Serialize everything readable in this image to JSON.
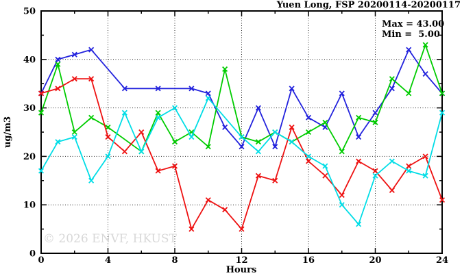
{
  "title": "Yuen Long, FSP 20200114-20200117",
  "watermark": "© 2026 ENVF, HKUST",
  "chart_data": {
    "type": "line",
    "title": "Yuen Long, FSP 20200114-20200117",
    "xlabel": "Hours",
    "ylabel": "ug/m3",
    "xlim": [
      0,
      24
    ],
    "ylim": [
      0,
      50
    ],
    "xticks": [
      0,
      4,
      8,
      12,
      16,
      20,
      24
    ],
    "yticks": [
      0,
      10,
      20,
      30,
      40,
      50
    ],
    "grid": true,
    "legend": "none",
    "annotations": {
      "max": "Max = 43.00",
      "min": "Min =  5.00"
    },
    "x": [
      0,
      1,
      2,
      3,
      4,
      5,
      6,
      7,
      8,
      9,
      10,
      11,
      12,
      13,
      14,
      15,
      16,
      17,
      18,
      19,
      20,
      21,
      22,
      23,
      24
    ],
    "series": [
      {
        "name": "blue",
        "color": "#2222dd",
        "values": [
          33,
          40,
          41,
          42,
          null,
          34,
          null,
          34,
          null,
          34,
          33,
          26,
          22,
          30,
          22,
          34,
          28,
          26,
          33,
          24,
          29,
          34,
          42,
          37,
          33
        ]
      },
      {
        "name": "green",
        "color": "#00cc00",
        "values": [
          29,
          39,
          25,
          28,
          26,
          null,
          21,
          29,
          23,
          25,
          22,
          38,
          24,
          23,
          25,
          23,
          25,
          27,
          21,
          28,
          27,
          36,
          33,
          43,
          33
        ]
      },
      {
        "name": "red",
        "color": "#ee1111",
        "values": [
          33,
          34,
          36,
          36,
          24,
          21,
          25,
          17,
          18,
          5,
          11,
          9,
          5,
          16,
          15,
          26,
          19,
          16,
          12,
          19,
          17,
          13,
          18,
          20,
          11
        ]
      },
      {
        "name": "cyan",
        "color": "#00dde6",
        "values": [
          17,
          23,
          24,
          15,
          20,
          29,
          21,
          28,
          30,
          24,
          32,
          null,
          24,
          21,
          25,
          23,
          20,
          18,
          10,
          6,
          16,
          19,
          17,
          16,
          29
        ]
      }
    ]
  }
}
